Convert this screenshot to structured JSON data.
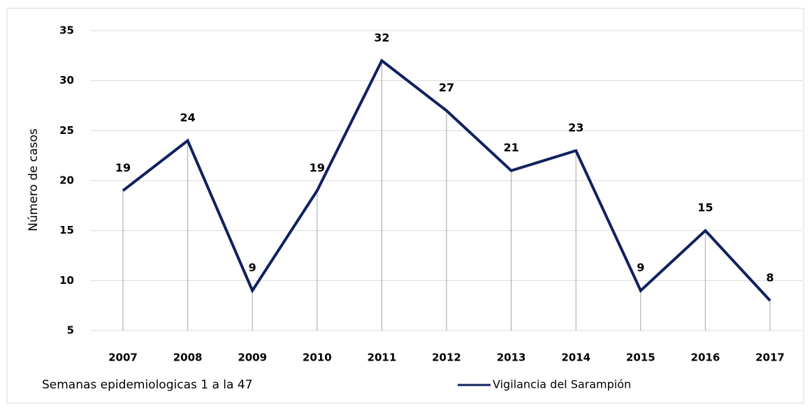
{
  "chart_data": {
    "type": "line",
    "y_label": "Número de casos",
    "x_label": "Semanas epidemiologicas 1 a la 47",
    "categories": [
      "2007",
      "2008",
      "2009",
      "2010",
      "2011",
      "2012",
      "2013",
      "2014",
      "2015",
      "2016",
      "2017"
    ],
    "series": [
      {
        "name": "Vigilancia del Sarampión",
        "color": "#10215e",
        "values": [
          19,
          24,
          9,
          19,
          32,
          27,
          21,
          23,
          9,
          15,
          8
        ]
      }
    ],
    "ylim": [
      5,
      35
    ],
    "yticks": [
      5,
      10,
      15,
      20,
      25,
      30,
      35
    ],
    "grid": true,
    "drop_lines": true,
    "legend": "bottom"
  }
}
